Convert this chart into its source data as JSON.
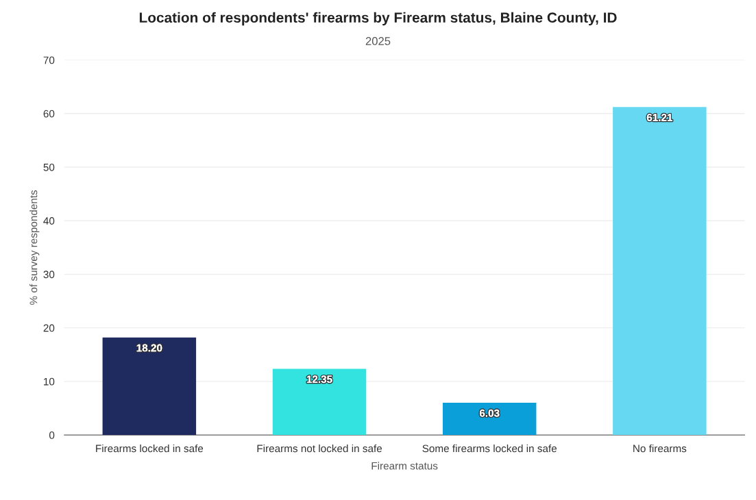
{
  "chart_data": {
    "type": "bar",
    "title": "Location of respondents' firearms by Firearm status, Blaine County, ID",
    "subtitle": "2025",
    "xlabel": "Firearm status",
    "ylabel": "% of survey respondents",
    "categories": [
      "Firearms locked in safe",
      "Firearms not locked in safe",
      "Some firearms locked in safe",
      "No firearms"
    ],
    "values": [
      18.2,
      12.35,
      6.03,
      61.21
    ],
    "colors": [
      "#1f2a5e",
      "#33e3e0",
      "#0a9fd8",
      "#66d8f2"
    ],
    "value_labels": [
      "18.20",
      "12.35",
      "6.03",
      "61.21"
    ],
    "ylim": [
      0,
      70
    ],
    "yticks": [
      0,
      10,
      20,
      30,
      40,
      50,
      60,
      70
    ],
    "grid": "y"
  }
}
